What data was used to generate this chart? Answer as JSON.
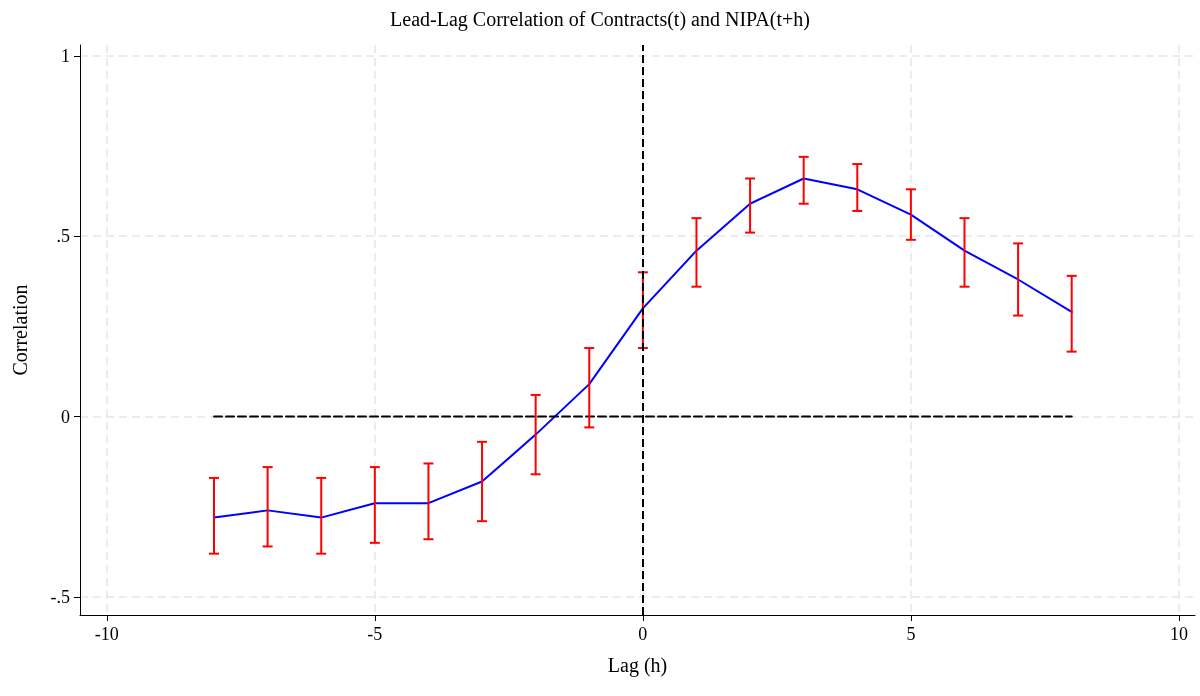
{
  "chart_data": {
    "type": "line",
    "title": "Lead-Lag Correlation of Contracts(t) and NIPA(t+h)",
    "xlabel": "Lag (h)",
    "ylabel": "Correlation",
    "x": [
      -8,
      -7,
      -6,
      -5,
      -4,
      -3,
      -2,
      -1,
      0,
      1,
      2,
      3,
      4,
      5,
      6,
      7,
      8
    ],
    "series": [
      {
        "color": "#0000ff",
        "marker": "none",
        "values": [
          -0.28,
          -0.26,
          -0.28,
          -0.24,
          -0.24,
          -0.18,
          -0.05,
          0.09,
          0.3,
          0.46,
          0.59,
          0.66,
          0.63,
          0.56,
          0.46,
          0.38,
          0.29
        ],
        "colors": [
          "#ff0000",
          "#ff0000",
          "#ff0000",
          "#ff0000",
          "#ff0000",
          "#ff0000",
          "#ff0000",
          "#ff0000",
          "#ff0000",
          "#ff0000",
          "#ff0000",
          "#ff0000",
          "#ff0000",
          "#ff0000",
          "#ff0000",
          "#ff0000",
          "#ff0000"
        ],
        "errors": [
          [
            -0.38,
            -0.17
          ],
          [
            -0.36,
            -0.14
          ],
          [
            -0.38,
            -0.17
          ],
          [
            -0.35,
            -0.14
          ],
          [
            -0.34,
            -0.13
          ],
          [
            -0.29,
            -0.07
          ],
          [
            -0.16,
            0.06
          ],
          [
            -0.03,
            0.19
          ],
          [
            0.19,
            0.4
          ],
          [
            0.36,
            0.55
          ],
          [
            0.51,
            0.66
          ],
          [
            0.59,
            0.72
          ],
          [
            0.57,
            0.7
          ],
          [
            0.49,
            0.63
          ],
          [
            0.36,
            0.55
          ],
          [
            0.28,
            0.48
          ],
          [
            0.18,
            0.39
          ]
        ]
      },
      {
        "color": "#000000",
        "marker": "none",
        "line_style": "dashed",
        "x": [
          -8,
          8
        ],
        "values": [
          0,
          0
        ]
      }
    ],
    "ref_lines": [
      {
        "axis": "x",
        "value": 0,
        "color": "#000000",
        "line_style": "dashed"
      }
    ],
    "xlim": [
      -10.5,
      10.3
    ],
    "xticks": [
      -10,
      -5,
      0,
      5,
      10
    ],
    "ylim": [
      -0.55,
      1.03
    ],
    "yticks": [
      {
        "value": -0.5,
        "label": "-.5"
      },
      0,
      {
        "value": 0.5,
        "label": ".5"
      },
      1
    ],
    "grid": true
  }
}
